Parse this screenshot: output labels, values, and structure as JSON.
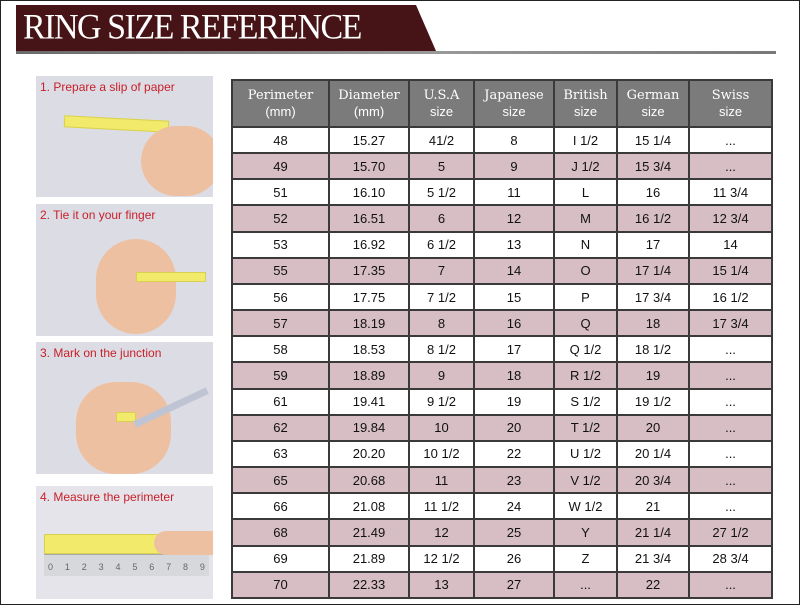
{
  "title": "RING SIZE REFERENCE",
  "colors": {
    "banner": "#461416",
    "header": "#7b7b7b",
    "alt_row": "#d6bec4",
    "step_text": "#c8202a"
  },
  "steps": [
    {
      "label": "1. Prepare a slip of paper"
    },
    {
      "label": "2. Tie it on your finger"
    },
    {
      "label": "3. Mark on the junction"
    },
    {
      "label": "4. Measure the perimeter"
    }
  ],
  "ruler_marks": [
    "0",
    "1",
    "2",
    "3",
    "4",
    "5",
    "6",
    "7",
    "8",
    "9"
  ],
  "table": {
    "headers": [
      {
        "top": "Perimeter",
        "sub": "(mm)"
      },
      {
        "top": "Diameter",
        "sub": "(mm)"
      },
      {
        "top": "U.S.A",
        "sub": "size"
      },
      {
        "top": "Japanese",
        "sub": "size"
      },
      {
        "top": "British",
        "sub": "size"
      },
      {
        "top": "German",
        "sub": "size"
      },
      {
        "top": "Swiss",
        "sub": "size"
      }
    ],
    "rows": [
      [
        "48",
        "15.27",
        "41/2",
        "8",
        "I 1/2",
        "15 1/4",
        "..."
      ],
      [
        "49",
        "15.70",
        "5",
        "9",
        "J 1/2",
        "15 3/4",
        "..."
      ],
      [
        "51",
        "16.10",
        "5 1/2",
        "11",
        "L",
        "16",
        "11 3/4"
      ],
      [
        "52",
        "16.51",
        "6",
        "12",
        "M",
        "16 1/2",
        "12 3/4"
      ],
      [
        "53",
        "16.92",
        "6 1/2",
        "13",
        "N",
        "17",
        "14"
      ],
      [
        "55",
        "17.35",
        "7",
        "14",
        "O",
        "17 1/4",
        "15 1/4"
      ],
      [
        "56",
        "17.75",
        "7 1/2",
        "15",
        "P",
        "17 3/4",
        "16 1/2"
      ],
      [
        "57",
        "18.19",
        "8",
        "16",
        "Q",
        "18",
        "17 3/4"
      ],
      [
        "58",
        "18.53",
        "8 1/2",
        "17",
        "Q  1/2",
        "18 1/2",
        "..."
      ],
      [
        "59",
        "18.89",
        "9",
        "18",
        "R 1/2",
        "19",
        "..."
      ],
      [
        "61",
        "19.41",
        "9 1/2",
        "19",
        "S 1/2",
        "19 1/2",
        "..."
      ],
      [
        "62",
        "19.84",
        "10",
        "20",
        "T 1/2",
        "20",
        "..."
      ],
      [
        "63",
        "20.20",
        "10 1/2",
        "22",
        "U 1/2",
        "20 1/4",
        "..."
      ],
      [
        "65",
        "20.68",
        "11",
        "23",
        "V 1/2",
        "20 3/4",
        "..."
      ],
      [
        "66",
        "21.08",
        "11 1/2",
        "24",
        "W 1/2",
        "21",
        "..."
      ],
      [
        "68",
        "21.49",
        "12",
        "25",
        "Y",
        "21 1/4",
        "27 1/2"
      ],
      [
        "69",
        "21.89",
        "12 1/2",
        "26",
        "Z",
        "21 3/4",
        "28 3/4"
      ],
      [
        "70",
        "22.33",
        "13",
        "27",
        "...",
        "22",
        "..."
      ]
    ]
  }
}
